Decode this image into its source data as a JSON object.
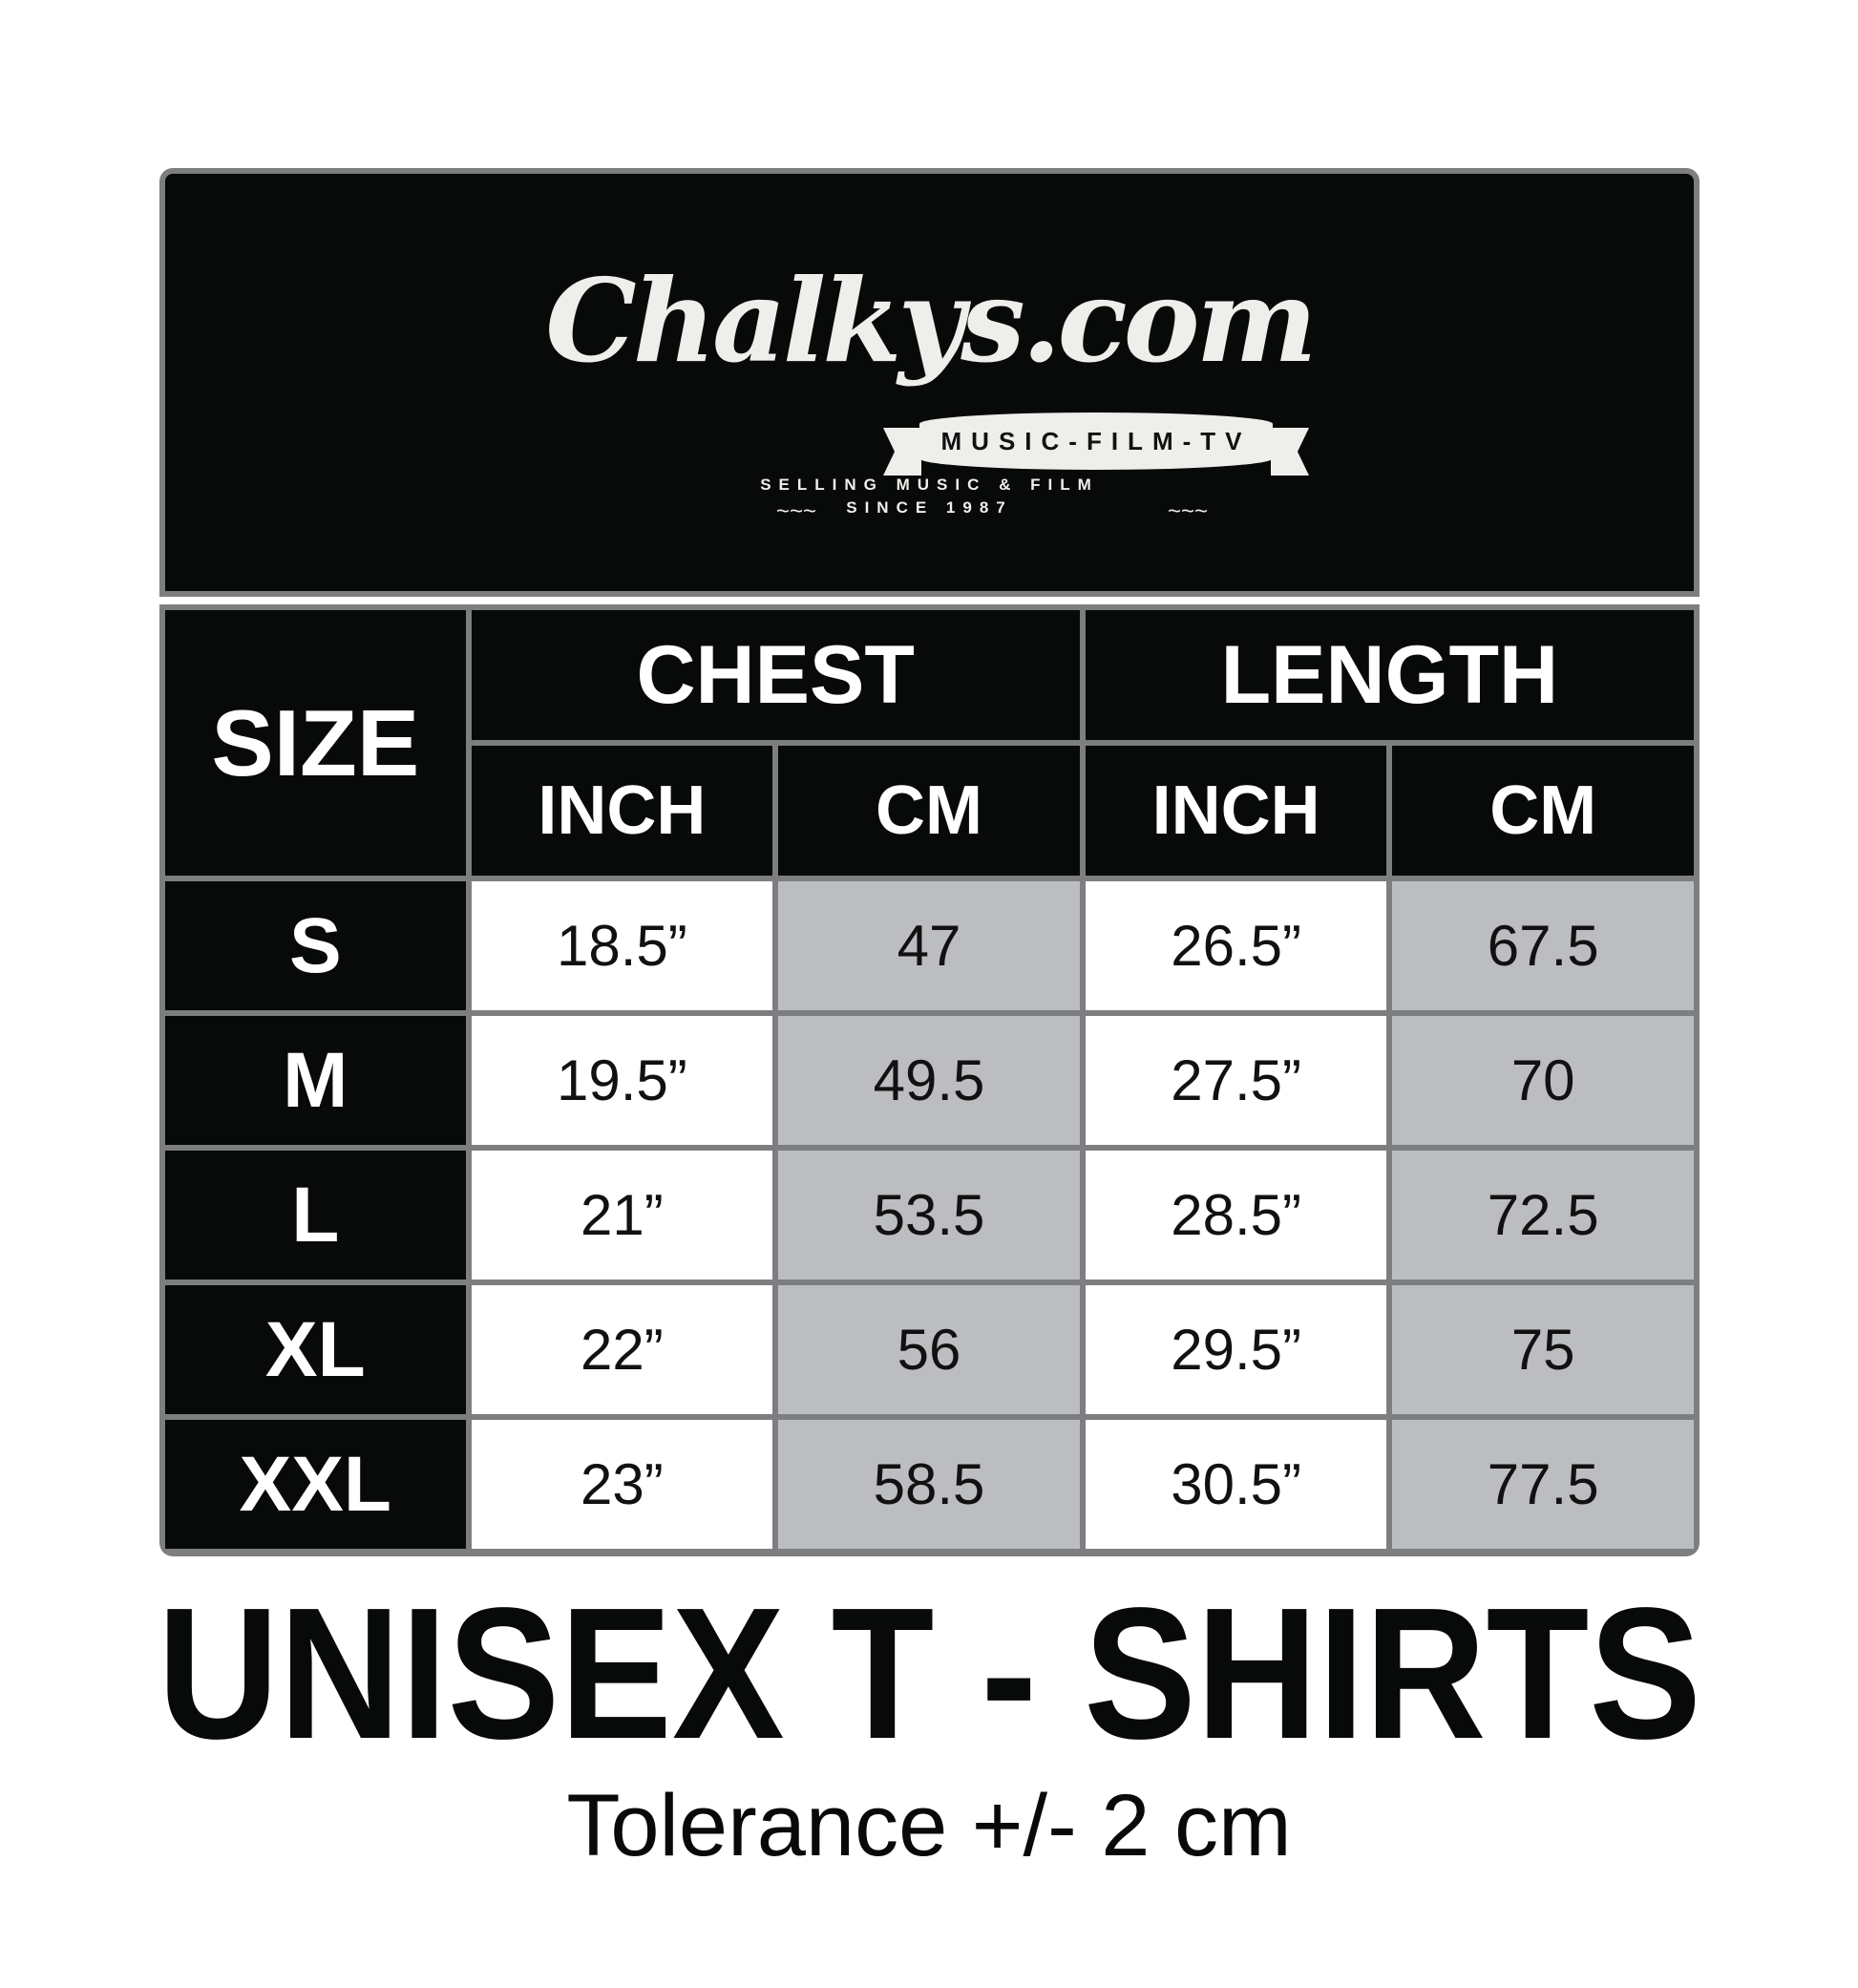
{
  "logo": {
    "name": "Chalkys.com",
    "banner": "MUSIC-FILM-TV",
    "tagline1": "SELLING MUSIC & FILM",
    "tagline2": "SINCE 1987"
  },
  "table": {
    "size_header": "SIZE",
    "groups": [
      "CHEST",
      "LENGTH"
    ],
    "units": [
      "INCH",
      "CM",
      "INCH",
      "CM"
    ],
    "rows": [
      {
        "size": "S",
        "chest_inch": "18.5”",
        "chest_cm": "47",
        "length_inch": "26.5”",
        "length_cm": "67.5"
      },
      {
        "size": "M",
        "chest_inch": "19.5”",
        "chest_cm": "49.5",
        "length_inch": "27.5”",
        "length_cm": "70"
      },
      {
        "size": "L",
        "chest_inch": "21”",
        "chest_cm": "53.5",
        "length_inch": "28.5”",
        "length_cm": "72.5"
      },
      {
        "size": "XL",
        "chest_inch": "22”",
        "chest_cm": "56",
        "length_inch": "29.5”",
        "length_cm": "75"
      },
      {
        "size": "XXL",
        "chest_inch": "23”",
        "chest_cm": "58.5",
        "length_inch": "30.5”",
        "length_cm": "77.5"
      }
    ]
  },
  "title": "UNISEX T - SHIRTS",
  "tolerance": "Tolerance +/- 2 cm",
  "colors": {
    "black": "#080a0a",
    "border": "#7d7e80",
    "gray_cell": "#bcbdc0"
  }
}
